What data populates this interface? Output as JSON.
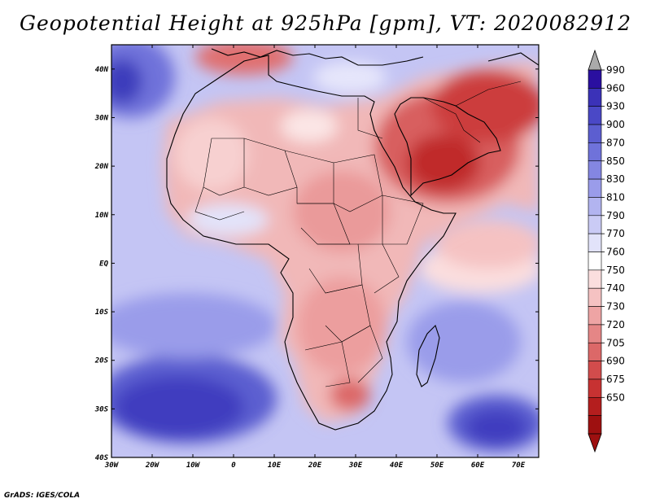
{
  "title": "Geopotential Height at 925hPa [gpm], VT: 2020082912",
  "credit": "GrADS: IGES/COLA",
  "map": {
    "lon_ticks": [
      "30W",
      "20W",
      "10W",
      "0",
      "10E",
      "20E",
      "30E",
      "40E",
      "50E",
      "60E",
      "70E"
    ],
    "lat_ticks": [
      "40N",
      "30N",
      "20N",
      "10N",
      "EQ",
      "10S",
      "20S",
      "30S",
      "40S"
    ],
    "lon_range": [
      -30,
      75
    ],
    "lat_range": [
      -40,
      45
    ]
  },
  "legend": {
    "levels": [
      "990",
      "960",
      "930",
      "900",
      "870",
      "850",
      "830",
      "810",
      "790",
      "770",
      "760",
      "750",
      "740",
      "730",
      "720",
      "705",
      "690",
      "675",
      "650"
    ],
    "colors": [
      "#2a0fa0",
      "#3b32b8",
      "#4a48c6",
      "#5c5ed0",
      "#6f72da",
      "#8486e2",
      "#9a9cea",
      "#b2b4f0",
      "#cacbf5",
      "#e2e3fa",
      "#ffffff",
      "#fbdede",
      "#f5c2c2",
      "#eea4a4",
      "#e58686",
      "#dc6868",
      "#d24c4c",
      "#c73232",
      "#b41e1e",
      "#9e1010"
    ],
    "top_arrow_color": "#aaaaaa",
    "bottom_arrow_color": "#9e1010"
  }
}
